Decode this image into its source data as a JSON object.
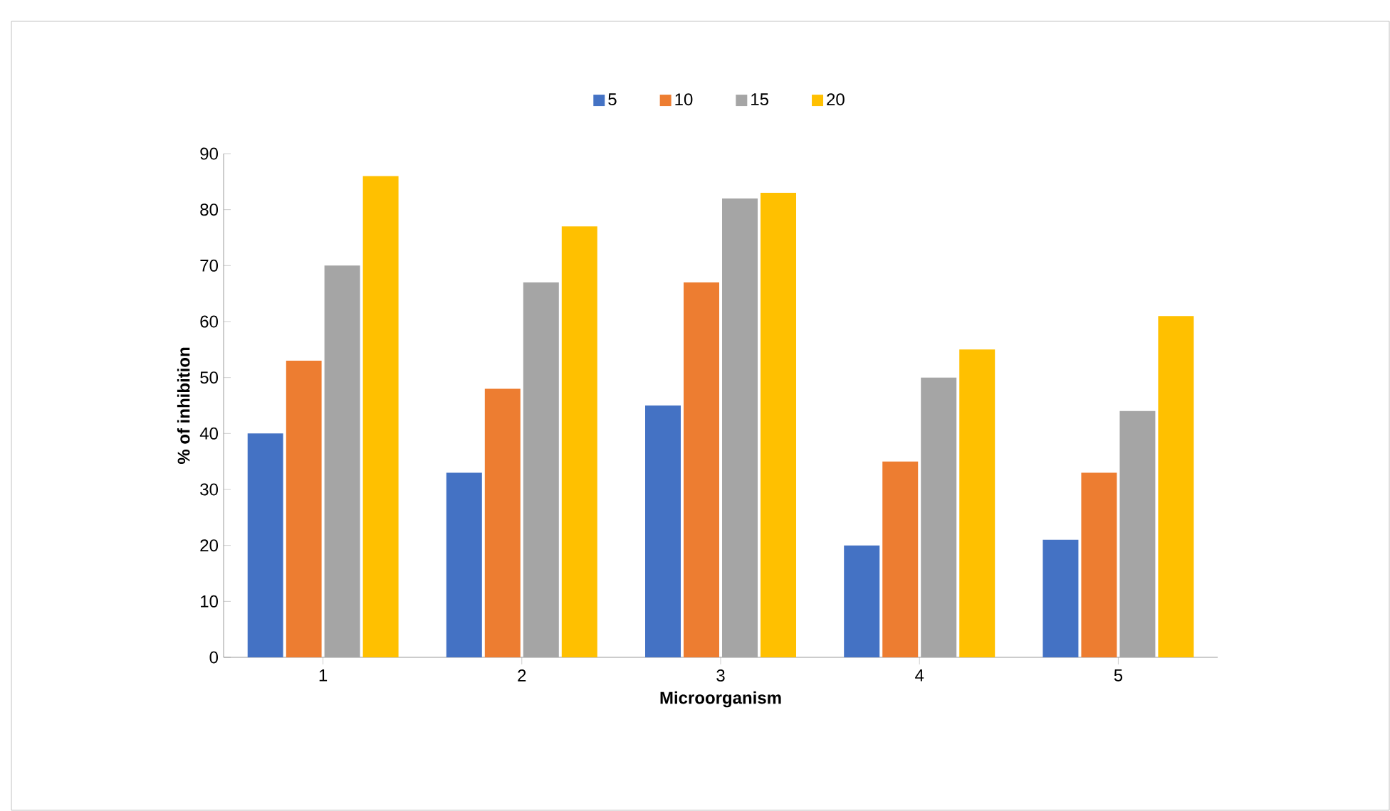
{
  "chart_data": {
    "type": "bar",
    "xlabel": "Microorganism",
    "ylabel": "% of inhibition",
    "categories": [
      "1",
      "2",
      "3",
      "4",
      "5"
    ],
    "series": [
      {
        "name": "5",
        "color": "#4472c4",
        "values": [
          40,
          33,
          45,
          20,
          21
        ]
      },
      {
        "name": "10",
        "color": "#ed7d31",
        "values": [
          53,
          48,
          67,
          35,
          33
        ]
      },
      {
        "name": "15",
        "color": "#a5a5a5",
        "values": [
          70,
          67,
          82,
          50,
          44
        ]
      },
      {
        "name": "20",
        "color": "#ffc000",
        "values": [
          86,
          77,
          83,
          55,
          61
        ]
      }
    ],
    "ylim": [
      0,
      90
    ],
    "yticks": [
      0,
      10,
      20,
      30,
      40,
      50,
      60,
      70,
      80,
      90
    ],
    "grid": false,
    "legend": "top"
  }
}
